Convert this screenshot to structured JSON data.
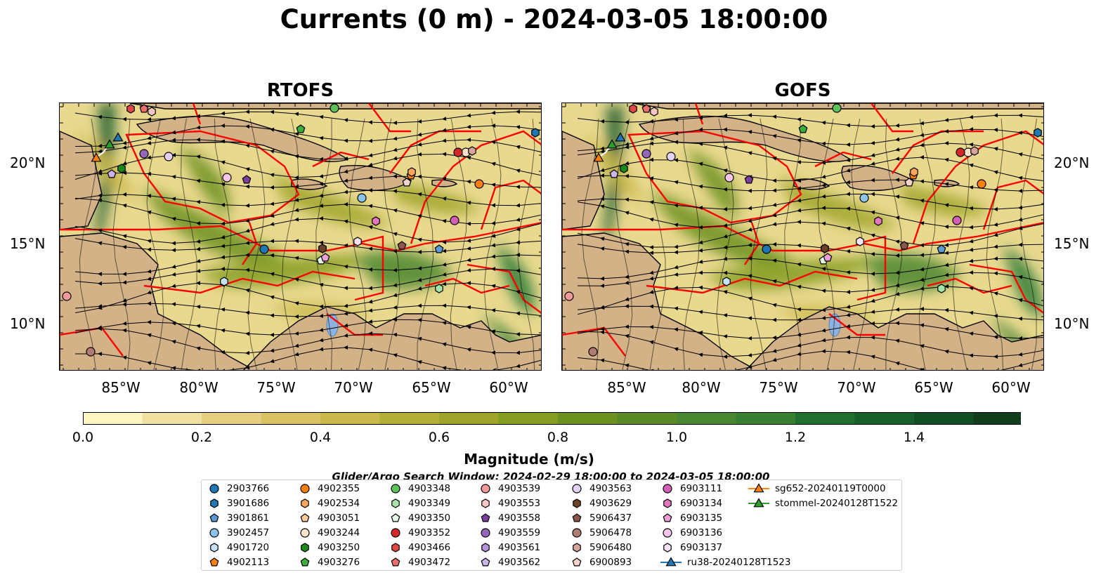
{
  "title": "Currents (0 m) - 2024-03-05 18:00:00",
  "panels": [
    {
      "title": "RTOFS"
    },
    {
      "title": "GOFS"
    }
  ],
  "axes": {
    "y_ticks": [
      "20°N",
      "15°N",
      "10°N"
    ],
    "x_ticks": [
      "85°W",
      "80°W",
      "75°W",
      "70°W",
      "65°W",
      "60°W"
    ]
  },
  "colorbar": {
    "label": "Magnitude (m/s)",
    "ticks": [
      "0.0",
      "0.2",
      "0.4",
      "0.6",
      "0.8",
      "1.0",
      "1.2",
      "1.4"
    ],
    "colors": [
      "#fdf5c2",
      "#f1e1a0",
      "#e7cf80",
      "#d9c262",
      "#c9b94a",
      "#b3ae35",
      "#9fa52a",
      "#849c1f",
      "#6c911f",
      "#5a8a27",
      "#4b8630",
      "#387e33",
      "#226f32",
      "#175f2b",
      "#124e23",
      "#113d1c",
      "#112e18",
      "#112314"
    ]
  },
  "search_window": "Glider/Argo Search Window: 2024-02-29 18:00:00 to 2024-03-05 18:00:00",
  "legend": [
    {
      "label": "2903766",
      "marker": "circle",
      "color": "#1f77b4"
    },
    {
      "label": "3901686",
      "marker": "hexagon",
      "color": "#1f77b4"
    },
    {
      "label": "3901861",
      "marker": "pentagon",
      "color": "#5a9bd5"
    },
    {
      "label": "3902457",
      "marker": "circle",
      "color": "#8cc4ea"
    },
    {
      "label": "4901720",
      "marker": "hexagon",
      "color": "#c6e2f7"
    },
    {
      "label": "4902113",
      "marker": "pentagon",
      "color": "#ff7f0e"
    },
    {
      "label": "4902355",
      "marker": "circle",
      "color": "#ff7f0e"
    },
    {
      "label": "4902534",
      "marker": "hexagon",
      "color": "#ffa55c"
    },
    {
      "label": "4903051",
      "marker": "pentagon",
      "color": "#ffc99a"
    },
    {
      "label": "4903244",
      "marker": "circle",
      "color": "#ffe3c8"
    },
    {
      "label": "4903250",
      "marker": "hexagon",
      "color": "#1a8a1a"
    },
    {
      "label": "4903276",
      "marker": "pentagon",
      "color": "#3cae3c"
    },
    {
      "label": "4903348",
      "marker": "circle",
      "color": "#5cc35c"
    },
    {
      "label": "4903349",
      "marker": "hexagon",
      "color": "#a6e3a6"
    },
    {
      "label": "4903350",
      "marker": "pentagon",
      "color": "#e2f6e2"
    },
    {
      "label": "4903352",
      "marker": "circle",
      "color": "#d62728"
    },
    {
      "label": "4903466",
      "marker": "hexagon",
      "color": "#e04848"
    },
    {
      "label": "4903472",
      "marker": "pentagon",
      "color": "#ec6f6f"
    },
    {
      "label": "4903539",
      "marker": "circle",
      "color": "#f29a9a"
    },
    {
      "label": "4903553",
      "marker": "hexagon",
      "color": "#f9c6c6"
    },
    {
      "label": "4903558",
      "marker": "pentagon",
      "color": "#7b3fa0"
    },
    {
      "label": "4903559",
      "marker": "circle",
      "color": "#9467bd"
    },
    {
      "label": "4903561",
      "marker": "hexagon",
      "color": "#b593d6"
    },
    {
      "label": "4903562",
      "marker": "pentagon",
      "color": "#cdb4ea"
    },
    {
      "label": "4903563",
      "marker": "circle",
      "color": "#e3d2f6"
    },
    {
      "label": "4903629",
      "marker": "hexagon",
      "color": "#6b4226"
    },
    {
      "label": "5906437",
      "marker": "pentagon",
      "color": "#8c564b"
    },
    {
      "label": "5906478",
      "marker": "circle",
      "color": "#b07d72"
    },
    {
      "label": "5906480",
      "marker": "hexagon",
      "color": "#d4a59b"
    },
    {
      "label": "6900893",
      "marker": "pentagon",
      "color": "#f3d3cb"
    },
    {
      "label": "6903111",
      "marker": "circle",
      "color": "#d45fb8"
    },
    {
      "label": "6903134",
      "marker": "hexagon",
      "color": "#e377c2"
    },
    {
      "label": "6903135",
      "marker": "pentagon",
      "color": "#ec9fd6"
    },
    {
      "label": "6903136",
      "marker": "circle",
      "color": "#f6c7e8"
    },
    {
      "label": "6903137",
      "marker": "hexagon",
      "color": "#fbe3f3"
    },
    {
      "label": "ru38-20240128T1523",
      "marker": "triangle-line",
      "color": "#1f77b4"
    },
    {
      "label": "sg652-20240119T0000",
      "marker": "triangle-line",
      "color": "#ff7f0e"
    },
    {
      "label": "stommel-20240128T1522",
      "marker": "triangle-line",
      "color": "#2ca02c"
    }
  ],
  "style": {
    "land": "#d3b288",
    "eez_lines": "#ff0000",
    "streamlines": "#000000",
    "lakes": "#8fb3e0"
  }
}
